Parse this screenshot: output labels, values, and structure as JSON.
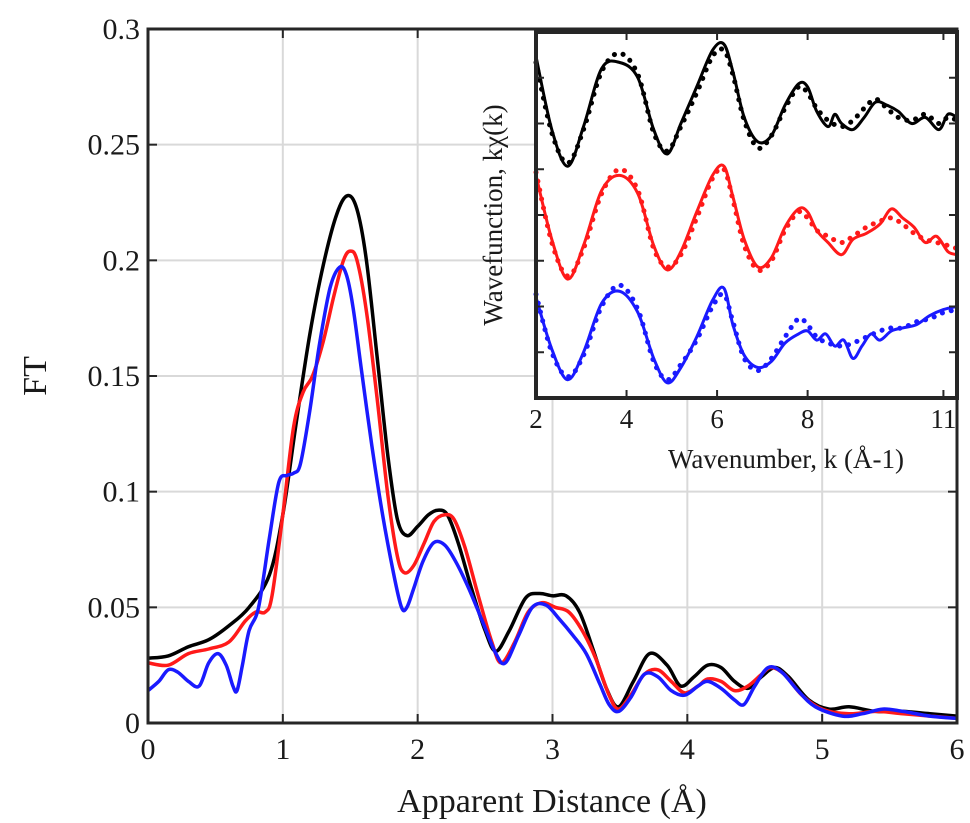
{
  "chart_data": [
    {
      "type": "line",
      "title": "",
      "xlabel": "Apparent Distance (Å)",
      "ylabel": "FT",
      "xlim": [
        0,
        6
      ],
      "ylim": [
        0,
        0.3
      ],
      "xticks": [
        0,
        1,
        2,
        3,
        4,
        5,
        6
      ],
      "xtick_labels": [
        "0",
        "1",
        "2",
        "3",
        "4",
        "5",
        "6"
      ],
      "yticks": [
        0,
        0.05,
        0.1,
        0.15,
        0.2,
        0.25,
        0.3
      ],
      "ytick_labels": [
        "0",
        "0.05",
        "0.1",
        "0.15",
        "0.2",
        "0.25",
        "0.3"
      ],
      "grid": true,
      "legend": "none",
      "series": [
        {
          "color": "#000000",
          "x": [
            0,
            0.15,
            0.3,
            0.45,
            0.6,
            0.75,
            0.9,
            1.0,
            1.1,
            1.2,
            1.3,
            1.4,
            1.48,
            1.55,
            1.62,
            1.7,
            1.78,
            1.85,
            1.92,
            2.0,
            2.08,
            2.15,
            2.22,
            2.3,
            2.4,
            2.5,
            2.58,
            2.68,
            2.8,
            2.9,
            3.0,
            3.1,
            3.2,
            3.3,
            3.4,
            3.49,
            3.6,
            3.72,
            3.85,
            3.95,
            4.05,
            4.15,
            4.25,
            4.35,
            4.45,
            4.55,
            4.65,
            4.75,
            4.9,
            5.05,
            5.2,
            5.4,
            5.6,
            5.8,
            6.0
          ],
          "y": [
            0.028,
            0.029,
            0.033,
            0.036,
            0.042,
            0.05,
            0.064,
            0.09,
            0.13,
            0.168,
            0.198,
            0.22,
            0.228,
            0.222,
            0.2,
            0.158,
            0.115,
            0.088,
            0.081,
            0.085,
            0.09,
            0.092,
            0.09,
            0.078,
            0.058,
            0.04,
            0.031,
            0.04,
            0.054,
            0.056,
            0.055,
            0.055,
            0.048,
            0.032,
            0.015,
            0.007,
            0.018,
            0.03,
            0.025,
            0.016,
            0.02,
            0.025,
            0.024,
            0.018,
            0.015,
            0.02,
            0.024,
            0.02,
            0.01,
            0.006,
            0.007,
            0.005,
            0.005,
            0.004,
            0.003
          ]
        },
        {
          "color": "#ff1a1a",
          "x": [
            0,
            0.15,
            0.3,
            0.45,
            0.6,
            0.72,
            0.8,
            0.87,
            0.92,
            1.0,
            1.08,
            1.15,
            1.22,
            1.3,
            1.38,
            1.45,
            1.5,
            1.55,
            1.62,
            1.7,
            1.78,
            1.85,
            1.9,
            1.97,
            2.05,
            2.12,
            2.2,
            2.27,
            2.35,
            2.45,
            2.55,
            2.62,
            2.72,
            2.82,
            2.92,
            3.02,
            3.12,
            3.22,
            3.32,
            3.42,
            3.49,
            3.58,
            3.68,
            3.78,
            3.88,
            3.98,
            4.08,
            4.15,
            4.25,
            4.35,
            4.45,
            4.55,
            4.62,
            4.72,
            4.85,
            5.0,
            5.2,
            5.4,
            5.6,
            5.8,
            6.0
          ],
          "y": [
            0.026,
            0.025,
            0.03,
            0.032,
            0.035,
            0.044,
            0.048,
            0.048,
            0.055,
            0.09,
            0.128,
            0.143,
            0.15,
            0.165,
            0.185,
            0.2,
            0.204,
            0.2,
            0.178,
            0.14,
            0.098,
            0.072,
            0.065,
            0.068,
            0.078,
            0.087,
            0.09,
            0.088,
            0.076,
            0.055,
            0.035,
            0.026,
            0.035,
            0.048,
            0.052,
            0.05,
            0.048,
            0.04,
            0.028,
            0.012,
            0.006,
            0.012,
            0.021,
            0.023,
            0.018,
            0.013,
            0.016,
            0.019,
            0.018,
            0.014,
            0.016,
            0.021,
            0.024,
            0.021,
            0.012,
            0.006,
            0.004,
            0.005,
            0.004,
            0.003,
            0.002
          ]
        },
        {
          "color": "#1a1aff",
          "x": [
            0,
            0.08,
            0.15,
            0.22,
            0.3,
            0.38,
            0.45,
            0.52,
            0.58,
            0.63,
            0.66,
            0.7,
            0.75,
            0.82,
            0.9,
            0.97,
            1.03,
            1.08,
            1.13,
            1.2,
            1.27,
            1.35,
            1.42,
            1.47,
            1.52,
            1.58,
            1.66,
            1.74,
            1.82,
            1.88,
            1.92,
            1.97,
            2.04,
            2.12,
            2.2,
            2.28,
            2.38,
            2.48,
            2.58,
            2.65,
            2.75,
            2.85,
            2.95,
            3.05,
            3.15,
            3.25,
            3.35,
            3.42,
            3.49,
            3.58,
            3.68,
            3.78,
            3.88,
            3.98,
            4.08,
            4.15,
            4.25,
            4.35,
            4.42,
            4.5,
            4.6,
            4.7,
            4.82,
            4.95,
            5.15,
            5.3,
            5.45,
            5.6,
            5.8,
            6.0
          ],
          "y": [
            0.014,
            0.018,
            0.023,
            0.022,
            0.018,
            0.016,
            0.026,
            0.03,
            0.025,
            0.016,
            0.014,
            0.025,
            0.04,
            0.05,
            0.08,
            0.104,
            0.107,
            0.108,
            0.112,
            0.135,
            0.163,
            0.188,
            0.197,
            0.194,
            0.18,
            0.154,
            0.12,
            0.09,
            0.065,
            0.05,
            0.05,
            0.058,
            0.07,
            0.078,
            0.077,
            0.07,
            0.058,
            0.044,
            0.03,
            0.026,
            0.038,
            0.05,
            0.051,
            0.045,
            0.038,
            0.03,
            0.017,
            0.008,
            0.005,
            0.011,
            0.021,
            0.02,
            0.014,
            0.012,
            0.016,
            0.018,
            0.015,
            0.01,
            0.008,
            0.016,
            0.024,
            0.022,
            0.014,
            0.007,
            0.003,
            0.004,
            0.006,
            0.005,
            0.003,
            0.002
          ]
        }
      ]
    },
    {
      "type": "line",
      "title": "",
      "xlabel": "Wavenumber, k (Å-1)",
      "ylabel": "Wavefunction, kχ(k)",
      "xlim": [
        2,
        11.3
      ],
      "xticks": [
        2,
        4,
        6,
        8,
        11
      ],
      "xtick_labels": [
        "2",
        "4",
        "6",
        "8",
        "11"
      ],
      "ylim": [
        -1,
        11
      ],
      "grid": false,
      "legend": "none",
      "series": [
        {
          "color": "#000000",
          "style": "solid",
          "x": [
            2.0,
            2.35,
            2.7,
            3.05,
            3.45,
            3.85,
            4.25,
            4.6,
            4.9,
            5.2,
            5.55,
            5.9,
            6.15,
            6.35,
            6.6,
            6.9,
            7.2,
            7.5,
            7.8,
            8.0,
            8.2,
            8.45,
            8.6,
            8.75,
            9.0,
            9.25,
            9.5,
            9.75,
            10.0,
            10.3,
            10.6,
            10.9,
            11.1,
            11.3
          ],
          "y": [
            10.2,
            7.8,
            6.6,
            7.9,
            9.8,
            10.0,
            9.5,
            7.8,
            7.0,
            8.0,
            9.2,
            10.4,
            10.6,
            9.7,
            8.2,
            7.4,
            7.6,
            8.6,
            9.3,
            9.2,
            8.4,
            7.9,
            8.3,
            8.0,
            7.8,
            8.2,
            8.7,
            8.6,
            8.4,
            8.0,
            8.2,
            7.8,
            8.3,
            8.2
          ]
        },
        {
          "color": "#000000",
          "style": "dotted",
          "x": [
            2.0,
            2.35,
            2.7,
            3.05,
            3.45,
            3.85,
            4.25,
            4.6,
            4.9,
            5.2,
            5.55,
            5.9,
            6.15,
            6.35,
            6.6,
            6.9,
            7.2,
            7.5,
            7.8,
            8.0,
            8.2,
            8.45,
            8.75,
            9.0,
            9.25,
            9.5,
            9.75,
            10.0,
            10.3,
            10.6,
            10.9,
            11.1,
            11.3
          ],
          "y": [
            10.0,
            7.7,
            6.7,
            7.8,
            9.7,
            10.3,
            9.6,
            7.7,
            7.1,
            7.9,
            9.0,
            10.2,
            10.4,
            9.6,
            8.1,
            7.2,
            7.6,
            8.5,
            9.2,
            9.0,
            8.5,
            8.1,
            7.9,
            8.1,
            8.5,
            8.8,
            8.5,
            8.2,
            8.1,
            8.3,
            8.0,
            8.2,
            8.1
          ]
        },
        {
          "color": "#ff1a1a",
          "style": "solid",
          "x": [
            2.0,
            2.35,
            2.7,
            3.05,
            3.45,
            3.85,
            4.25,
            4.6,
            4.9,
            5.2,
            5.55,
            5.9,
            6.15,
            6.35,
            6.6,
            6.9,
            7.2,
            7.5,
            7.8,
            8.0,
            8.2,
            8.45,
            8.75,
            9.0,
            9.3,
            9.6,
            9.85,
            10.1,
            10.35,
            10.6,
            10.85,
            11.1,
            11.3
          ],
          "y": [
            6.3,
            4.2,
            2.9,
            4.0,
            5.8,
            6.3,
            5.7,
            4.0,
            3.2,
            3.8,
            5.1,
            6.3,
            6.6,
            5.6,
            4.2,
            3.3,
            3.6,
            4.6,
            5.2,
            5.1,
            4.5,
            4.1,
            3.7,
            4.2,
            4.4,
            4.7,
            5.2,
            4.9,
            4.6,
            4.1,
            4.3,
            3.8,
            3.7
          ]
        },
        {
          "color": "#ff1a1a",
          "style": "dotted",
          "x": [
            2.0,
            2.35,
            2.7,
            3.05,
            3.45,
            3.85,
            4.25,
            4.6,
            4.9,
            5.2,
            5.55,
            5.9,
            6.15,
            6.35,
            6.6,
            6.9,
            7.2,
            7.5,
            7.8,
            8.0,
            8.2,
            8.45,
            8.75,
            9.0,
            9.3,
            9.6,
            9.85,
            10.1,
            10.35,
            10.6,
            10.85,
            11.1,
            11.3
          ],
          "y": [
            6.4,
            4.1,
            3.0,
            3.9,
            5.7,
            6.5,
            5.8,
            3.9,
            3.3,
            3.7,
            4.9,
            6.2,
            6.5,
            5.5,
            4.0,
            3.2,
            3.5,
            4.5,
            5.1,
            4.9,
            4.5,
            4.3,
            4.1,
            4.3,
            4.6,
            4.8,
            4.9,
            4.7,
            4.4,
            4.2,
            4.1,
            4.0,
            3.9
          ]
        },
        {
          "color": "#1a1aff",
          "style": "solid",
          "x": [
            2.0,
            2.35,
            2.7,
            3.05,
            3.45,
            3.85,
            4.25,
            4.6,
            4.9,
            5.2,
            5.55,
            5.9,
            6.15,
            6.35,
            6.6,
            6.9,
            7.2,
            7.5,
            7.8,
            8.0,
            8.2,
            8.4,
            8.6,
            8.8,
            9.0,
            9.2,
            9.4,
            9.6,
            9.85,
            10.1,
            10.4,
            10.7,
            11.0,
            11.3
          ],
          "y": [
            2.3,
            0.6,
            -0.4,
            0.5,
            2.1,
            2.5,
            1.8,
            0.3,
            -0.5,
            0.0,
            1.0,
            2.2,
            2.6,
            1.4,
            0.4,
            0.0,
            0.2,
            0.8,
            1.1,
            1.2,
            0.9,
            1.1,
            0.7,
            0.9,
            0.3,
            0.7,
            1.1,
            0.9,
            1.2,
            1.3,
            1.4,
            1.7,
            1.9,
            2.0
          ]
        },
        {
          "color": "#1a1aff",
          "style": "dotted",
          "x": [
            2.0,
            2.35,
            2.7,
            3.05,
            3.45,
            3.85,
            4.25,
            4.6,
            4.9,
            5.2,
            5.55,
            5.9,
            6.15,
            6.35,
            6.6,
            6.9,
            7.2,
            7.5,
            7.8,
            8.0,
            8.2,
            8.45,
            8.75,
            9.0,
            9.3,
            9.6,
            9.85,
            10.1,
            10.4,
            10.7,
            11.0,
            11.3
          ],
          "y": [
            2.4,
            0.5,
            -0.3,
            0.4,
            2.0,
            2.7,
            1.9,
            0.2,
            -0.4,
            0.1,
            0.9,
            2.0,
            2.4,
            1.5,
            0.3,
            -0.1,
            0.3,
            1.0,
            1.6,
            1.4,
            1.0,
            0.8,
            0.7,
            0.8,
            1.0,
            1.2,
            1.3,
            1.3,
            1.5,
            1.6,
            1.8,
            1.9
          ]
        }
      ]
    }
  ]
}
